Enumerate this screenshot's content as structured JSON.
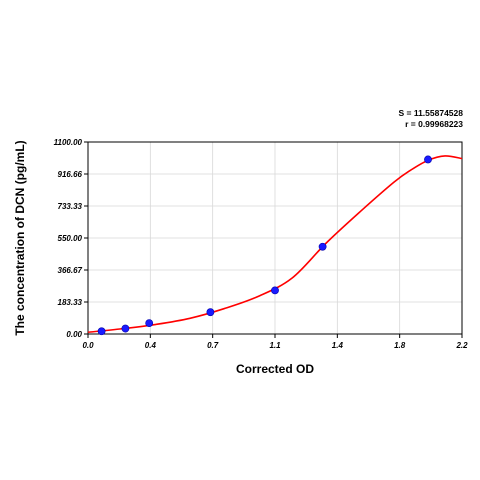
{
  "chart_data": {
    "type": "scatter",
    "xlabel": "Corrected OD",
    "ylabel": "The concentration of DCN (pg/mL)",
    "xlim": [
      0,
      2.2
    ],
    "ylim": [
      0,
      1100
    ],
    "x_ticks": [
      "0.0",
      "0.4",
      "0.7",
      "1.1",
      "1.4",
      "1.8",
      "2.2"
    ],
    "y_ticks": [
      "0.00",
      "183.33",
      "366.67",
      "550.00",
      "733.33",
      "916.66",
      "1100.00"
    ],
    "grid": true,
    "stats": {
      "s": "S = 11.55874528",
      "r": "r = 0.99968223"
    },
    "point_color": "#1a1aff",
    "curve_color": "#ff0000",
    "series": [
      {
        "type": "scatter",
        "x": [
          0.08,
          0.22,
          0.36,
          0.72,
          1.1,
          1.38,
          2.0
        ],
        "y": [
          15.6,
          31.2,
          62.5,
          125,
          250,
          500,
          1000
        ]
      }
    ],
    "fit_curve": {
      "x": [
        0.0,
        0.2,
        0.4,
        0.6,
        0.8,
        1.0,
        1.2,
        1.4,
        1.6,
        1.8,
        1.9,
        2.0,
        2.1,
        2.2
      ],
      "y": [
        10,
        30,
        55,
        90,
        145,
        215,
        320,
        520,
        700,
        870,
        940,
        995,
        1020,
        1005
      ]
    }
  }
}
